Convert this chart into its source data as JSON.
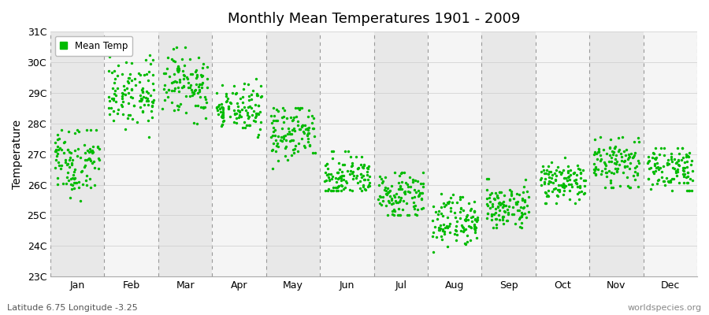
{
  "title": "Monthly Mean Temperatures 1901 - 2009",
  "ylabel": "Temperature",
  "footer_left": "Latitude 6.75 Longitude -3.25",
  "footer_right": "worldspecies.org",
  "legend_label": "Mean Temp",
  "dot_color": "#00bb00",
  "background_color": "#ffffff",
  "band_color_light": "#e8e8e8",
  "band_color_white": "#f5f5f5",
  "ylim": [
    23,
    31
  ],
  "yticks": [
    23,
    24,
    25,
    26,
    27,
    28,
    29,
    30,
    31
  ],
  "ytick_labels": [
    "23C",
    "24C",
    "25C",
    "26C",
    "27C",
    "28C",
    "29C",
    "30C",
    "31C"
  ],
  "months": [
    "Jan",
    "Feb",
    "Mar",
    "Apr",
    "May",
    "Jun",
    "Jul",
    "Aug",
    "Sep",
    "Oct",
    "Nov",
    "Dec"
  ],
  "month_means": [
    26.8,
    29.0,
    29.3,
    28.5,
    27.7,
    26.3,
    25.7,
    24.8,
    25.3,
    26.1,
    26.7,
    26.5
  ],
  "month_stds": [
    0.55,
    0.55,
    0.52,
    0.4,
    0.45,
    0.35,
    0.35,
    0.38,
    0.38,
    0.35,
    0.4,
    0.38
  ],
  "month_mins": [
    24.9,
    26.8,
    28.0,
    27.5,
    26.4,
    25.8,
    25.0,
    23.8,
    24.6,
    25.4,
    25.9,
    25.8
  ],
  "month_maxs": [
    27.8,
    30.3,
    30.5,
    29.5,
    28.5,
    27.1,
    26.4,
    25.7,
    26.2,
    26.9,
    27.6,
    27.2
  ],
  "n_years": 109
}
